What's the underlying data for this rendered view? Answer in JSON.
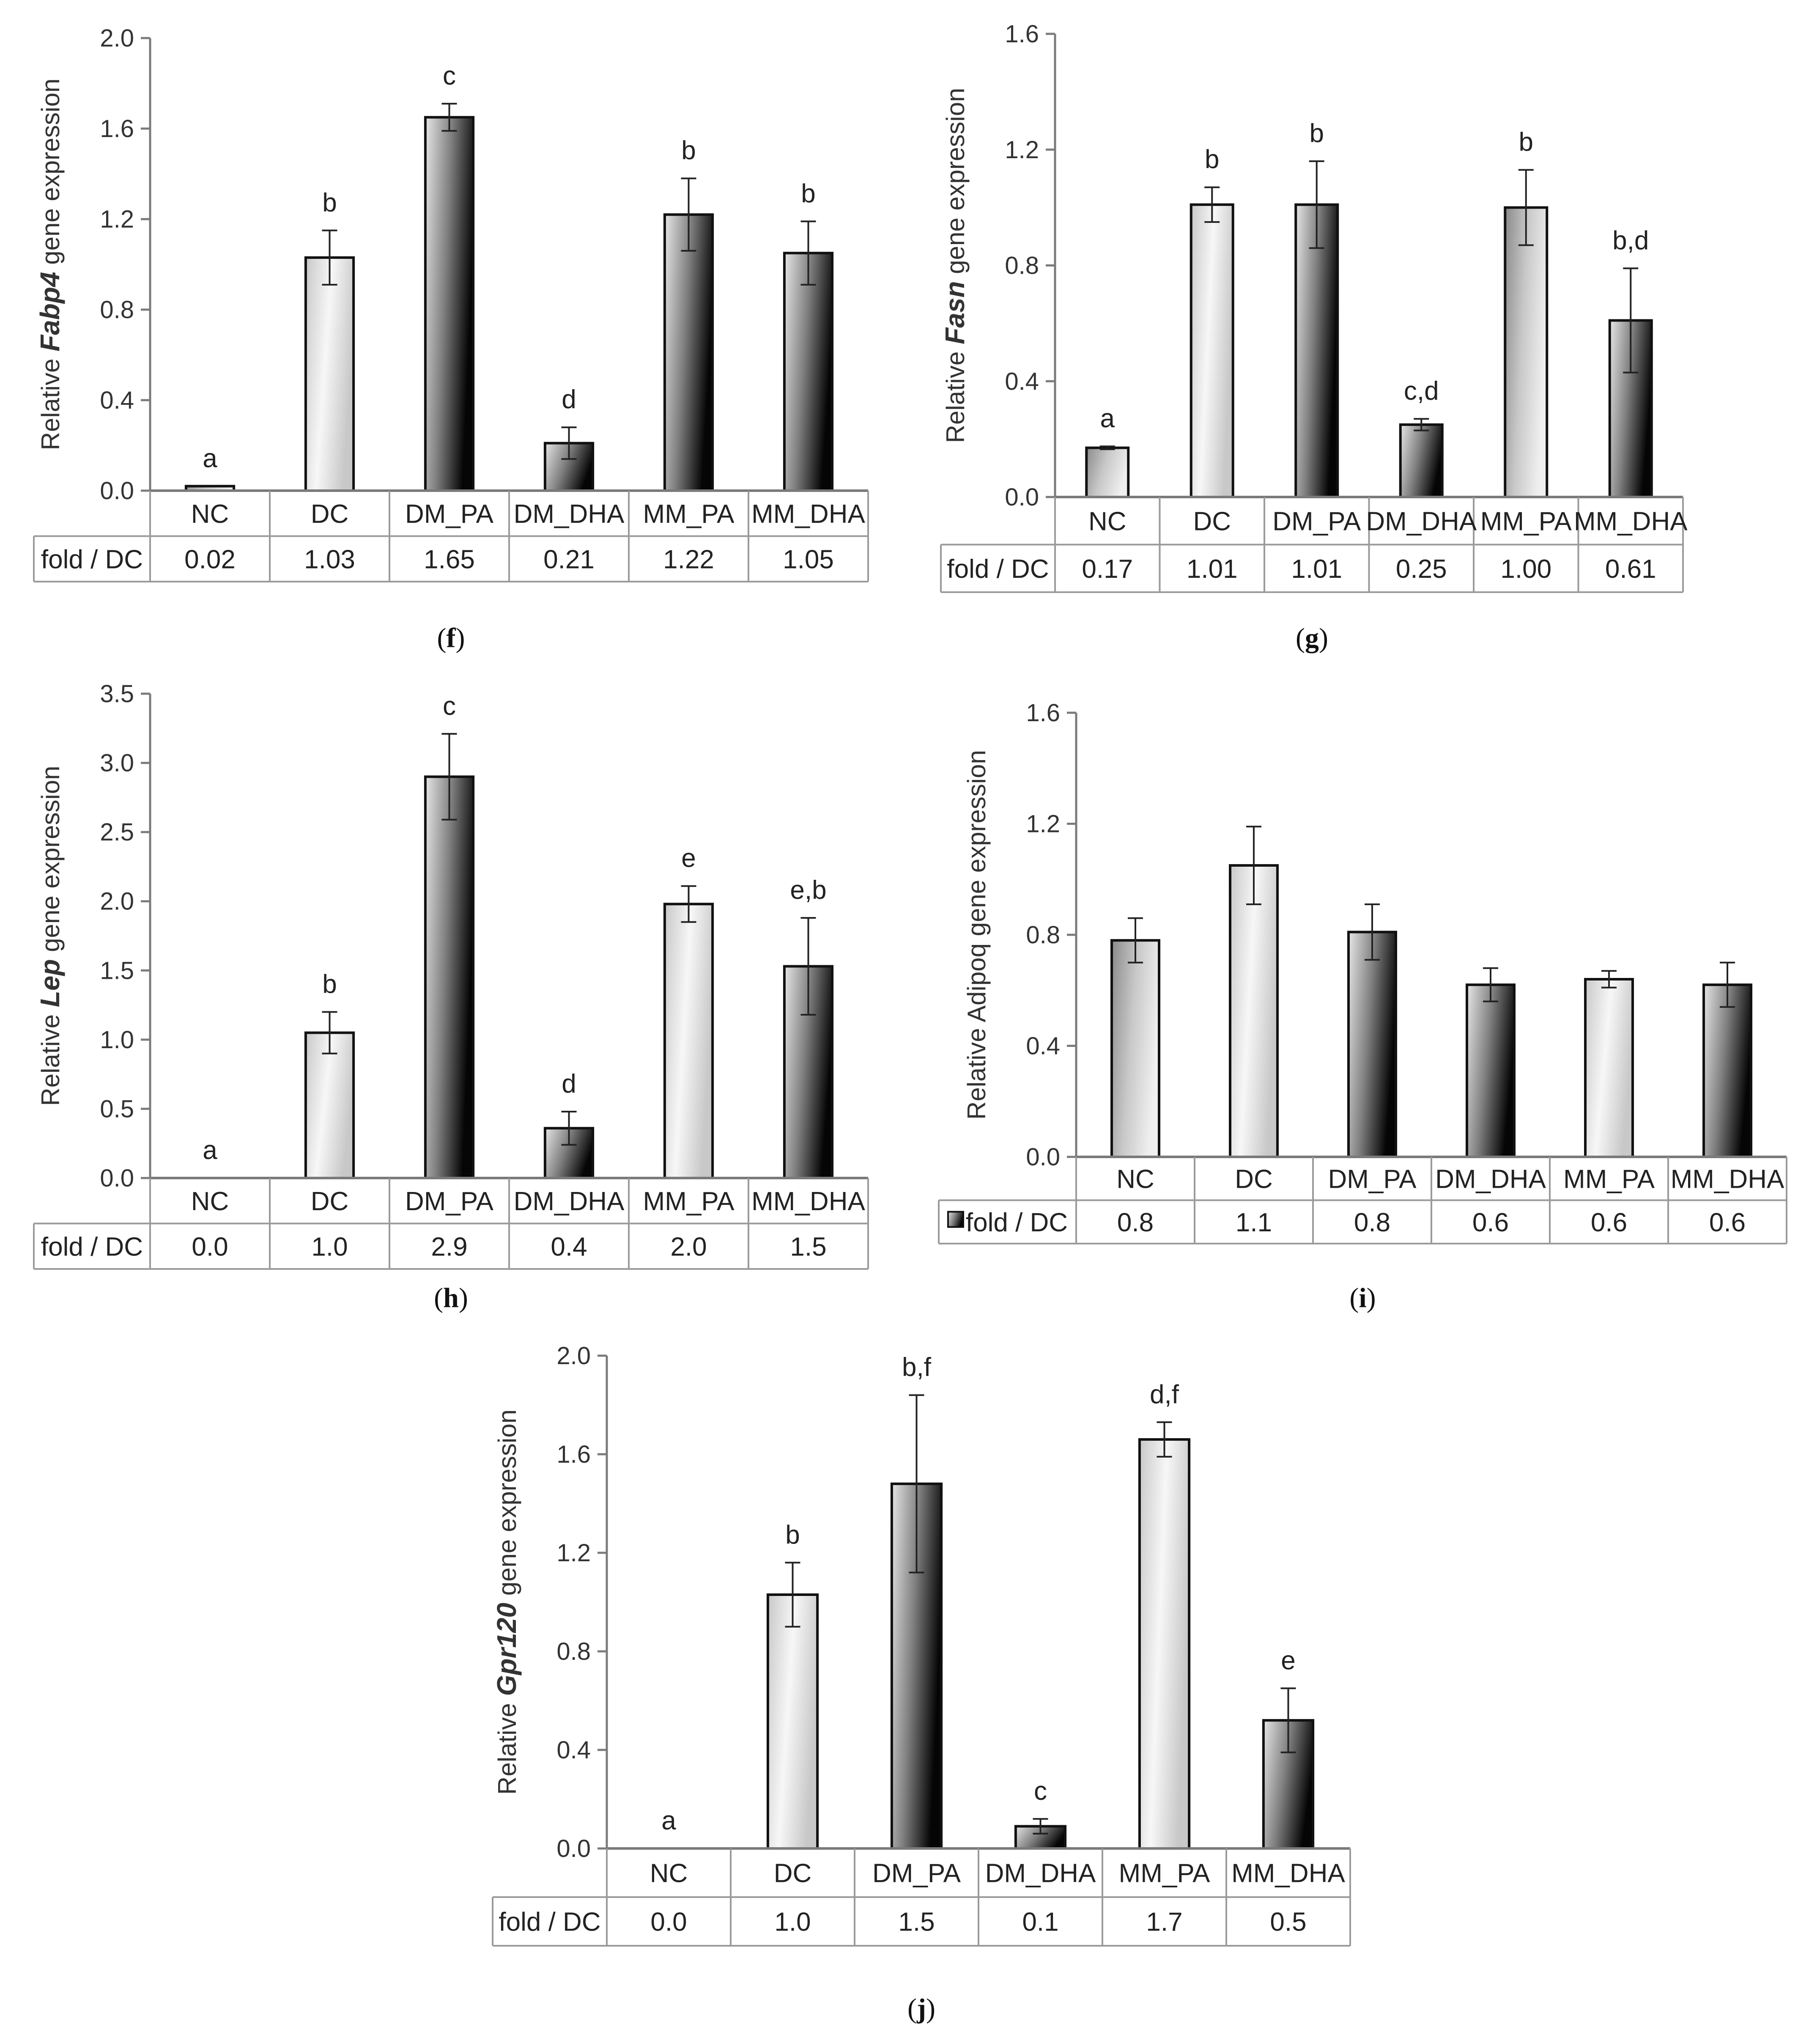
{
  "bar_styles": {
    "light": {
      "stops": [
        "#c8c8c8",
        "#f7f7f7",
        "#c8c8c8"
      ]
    },
    "dark": {
      "stops": [
        "#e6e6e6",
        "#808080",
        "#050505"
      ]
    },
    "mid": {
      "stops": [
        "#8a8a8a",
        "#c8c8c8",
        "#efefef"
      ]
    }
  },
  "chart_data": [
    {
      "id": "f",
      "type": "bar",
      "caption": "(f)",
      "ylabel_parts": [
        "Relative ",
        "Fabp4",
        " gene expression"
      ],
      "ylim": [
        0,
        2.0
      ],
      "yticks": [
        "0.0",
        "0.4",
        "0.8",
        "1.2",
        "1.6",
        "2.0"
      ],
      "categories": [
        "NC",
        "DC",
        "DM_PA",
        "DM_DHA",
        "MM_PA",
        "MM_DHA"
      ],
      "values": [
        0.02,
        1.03,
        1.65,
        0.21,
        1.22,
        1.05
      ],
      "errors": [
        0.0,
        0.12,
        0.06,
        0.07,
        0.16,
        0.14
      ],
      "significance": [
        "a",
        "b",
        "c",
        "d",
        "b",
        "b"
      ],
      "styles": [
        "mid",
        "light",
        "dark",
        "dark",
        "dark",
        "dark"
      ],
      "fold_label": "fold / DC",
      "fold_values": [
        "0.02",
        "1.03",
        "1.65",
        "0.21",
        "1.22",
        "1.05"
      ],
      "legend_marker": false
    },
    {
      "id": "g",
      "type": "bar",
      "caption": "(g)",
      "ylabel_parts": [
        "Relative ",
        "Fasn",
        " gene expression"
      ],
      "ylim": [
        0,
        1.6
      ],
      "yticks": [
        "0.0",
        "0.4",
        "0.8",
        "1.2",
        "1.6"
      ],
      "categories": [
        "NC",
        "DC",
        "DM_PA",
        "DM_DHA",
        "MM_PA",
        "MM_DHA"
      ],
      "values": [
        0.17,
        1.01,
        1.01,
        0.25,
        1.0,
        0.61
      ],
      "errors": [
        0.005,
        0.06,
        0.15,
        0.02,
        0.13,
        0.18
      ],
      "significance": [
        "a",
        "b",
        "b",
        "c,d",
        "b",
        "b,d"
      ],
      "styles": [
        "mid",
        "light",
        "dark",
        "dark",
        "mid",
        "dark"
      ],
      "fold_label": "fold / DC",
      "fold_values": [
        "0.17",
        "1.01",
        "1.01",
        "0.25",
        "1.00",
        "0.61"
      ],
      "legend_marker": false
    },
    {
      "id": "h",
      "type": "bar",
      "caption": "(h)",
      "ylabel_parts": [
        "Relative ",
        "Lep",
        " gene expression"
      ],
      "ylim": [
        0,
        3.5
      ],
      "yticks": [
        "0.0",
        "0.5",
        "1.0",
        "1.5",
        "2.0",
        "2.5",
        "3.0",
        "3.5"
      ],
      "categories": [
        "NC",
        "DC",
        "DM_PA",
        "DM_DHA",
        "MM_PA",
        "MM_DHA"
      ],
      "values": [
        0.0,
        1.05,
        2.9,
        0.36,
        1.98,
        1.53
      ],
      "errors": [
        0.0,
        0.15,
        0.31,
        0.12,
        0.13,
        0.35
      ],
      "significance": [
        "a",
        "b",
        "c",
        "d",
        "e",
        "e,b"
      ],
      "styles": [
        "mid",
        "light",
        "dark",
        "dark",
        "light",
        "dark"
      ],
      "fold_label": "fold / DC",
      "fold_values": [
        "0.0",
        "1.0",
        "2.9",
        "0.4",
        "2.0",
        "1.5"
      ],
      "legend_marker": false
    },
    {
      "id": "i",
      "type": "bar",
      "caption": "(i)",
      "ylabel_parts": [
        "Relative Adipoq gene expression"
      ],
      "ylim": [
        0,
        1.6
      ],
      "yticks": [
        "0.0",
        "0.4",
        "0.8",
        "1.2",
        "1.6"
      ],
      "categories": [
        "NC",
        "DC",
        "DM_PA",
        "DM_DHA",
        "MM_PA",
        "MM_DHA"
      ],
      "values": [
        0.78,
        1.05,
        0.81,
        0.62,
        0.64,
        0.62
      ],
      "errors": [
        0.08,
        0.14,
        0.1,
        0.06,
        0.03,
        0.08
      ],
      "significance": [
        "",
        "",
        "",
        "",
        "",
        ""
      ],
      "styles": [
        "mid",
        "light",
        "dark",
        "dark",
        "light",
        "dark"
      ],
      "fold_label": "fold / DC",
      "fold_values": [
        "0.8",
        "1.1",
        "0.8",
        "0.6",
        "0.6",
        "0.6"
      ],
      "legend_marker": true
    },
    {
      "id": "j",
      "type": "bar",
      "caption": "(j)",
      "ylabel_parts": [
        "Relative ",
        "Gpr120",
        " gene expression"
      ],
      "ylim": [
        0,
        2.0
      ],
      "yticks": [
        "0.0",
        "0.4",
        "0.8",
        "1.2",
        "1.6",
        "2.0"
      ],
      "categories": [
        "NC",
        "DC",
        "DM_PA",
        "DM_DHA",
        "MM_PA",
        "MM_DHA"
      ],
      "values": [
        0.0,
        1.03,
        1.48,
        0.09,
        1.66,
        0.52
      ],
      "errors": [
        0.0,
        0.13,
        0.36,
        0.03,
        0.07,
        0.13
      ],
      "significance": [
        "a",
        "b",
        "b,f",
        "c",
        "d,f",
        "e"
      ],
      "styles": [
        "mid",
        "light",
        "dark",
        "dark",
        "light",
        "dark"
      ],
      "fold_label": "fold / DC",
      "fold_values": [
        "0.0",
        "1.0",
        "1.5",
        "0.1",
        "1.7",
        "0.5"
      ],
      "legend_marker": false
    }
  ]
}
